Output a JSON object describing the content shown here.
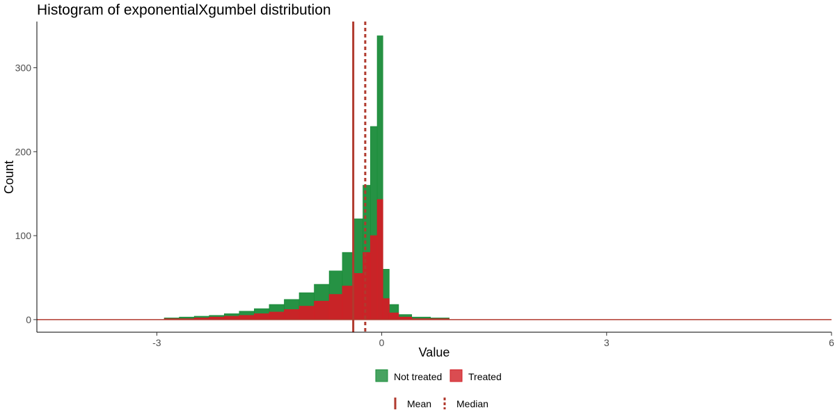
{
  "chart_data": {
    "type": "histogram",
    "title": "Histogram of exponentialXgumbel distribution",
    "xlabel": "Value",
    "ylabel": "Count",
    "xlim": [
      -4.6,
      6.0
    ],
    "ylim": [
      -15,
      355
    ],
    "x_ticks": [
      -3,
      0,
      3,
      6
    ],
    "y_ticks": [
      0,
      100,
      200,
      300
    ],
    "grid": false,
    "legend_position": "bottom",
    "series": [
      {
        "name": "Not treated",
        "color": "#1a8c3a",
        "bins": [
          {
            "x": -2.8,
            "count": 2
          },
          {
            "x": -2.6,
            "count": 3
          },
          {
            "x": -2.4,
            "count": 4
          },
          {
            "x": -2.2,
            "count": 5
          },
          {
            "x": -2.0,
            "count": 7
          },
          {
            "x": -1.8,
            "count": 10
          },
          {
            "x": -1.6,
            "count": 13
          },
          {
            "x": -1.4,
            "count": 18
          },
          {
            "x": -1.2,
            "count": 24
          },
          {
            "x": -1.0,
            "count": 32
          },
          {
            "x": -0.8,
            "count": 42
          },
          {
            "x": -0.6,
            "count": 58
          },
          {
            "x": -0.45,
            "count": 80
          },
          {
            "x": -0.3,
            "count": 120
          },
          {
            "x": -0.2,
            "count": 160
          },
          {
            "x": -0.1,
            "count": 230
          },
          {
            "x": -0.02,
            "count": 338
          },
          {
            "x": 0.05,
            "count": 60
          },
          {
            "x": 0.15,
            "count": 18
          },
          {
            "x": 0.3,
            "count": 6
          },
          {
            "x": 0.5,
            "count": 3
          },
          {
            "x": 0.8,
            "count": 2
          }
        ]
      },
      {
        "name": "Treated",
        "color": "#d11f26",
        "bins": [
          {
            "x": -2.8,
            "count": 1
          },
          {
            "x": -2.6,
            "count": 1
          },
          {
            "x": -2.4,
            "count": 2
          },
          {
            "x": -2.2,
            "count": 3
          },
          {
            "x": -2.0,
            "count": 4
          },
          {
            "x": -1.8,
            "count": 5
          },
          {
            "x": -1.6,
            "count": 7
          },
          {
            "x": -1.4,
            "count": 9
          },
          {
            "x": -1.2,
            "count": 12
          },
          {
            "x": -1.0,
            "count": 16
          },
          {
            "x": -0.8,
            "count": 22
          },
          {
            "x": -0.6,
            "count": 30
          },
          {
            "x": -0.45,
            "count": 40
          },
          {
            "x": -0.3,
            "count": 55
          },
          {
            "x": -0.2,
            "count": 80
          },
          {
            "x": -0.1,
            "count": 100
          },
          {
            "x": -0.02,
            "count": 143
          },
          {
            "x": 0.05,
            "count": 25
          },
          {
            "x": 0.15,
            "count": 8
          },
          {
            "x": 0.3,
            "count": 3
          },
          {
            "x": 0.5,
            "count": 1
          },
          {
            "x": 0.8,
            "count": 1
          }
        ]
      }
    ],
    "reference_lines": [
      {
        "name": "Mean",
        "x": -0.38,
        "style": "solid",
        "color": "#b03a2e"
      },
      {
        "name": "Median",
        "x": -0.22,
        "style": "dashed",
        "color": "#b03a2e"
      }
    ],
    "legends": [
      {
        "items": [
          {
            "label": "Not treated",
            "color": "#1a8c3a",
            "kind": "fill"
          },
          {
            "label": "Treated",
            "color": "#d11f26",
            "kind": "fill"
          }
        ]
      },
      {
        "items": [
          {
            "label": "Mean",
            "color": "#b03a2e",
            "kind": "solid-line"
          },
          {
            "label": "Median",
            "color": "#b03a2e",
            "kind": "dashed-line"
          }
        ]
      }
    ]
  }
}
